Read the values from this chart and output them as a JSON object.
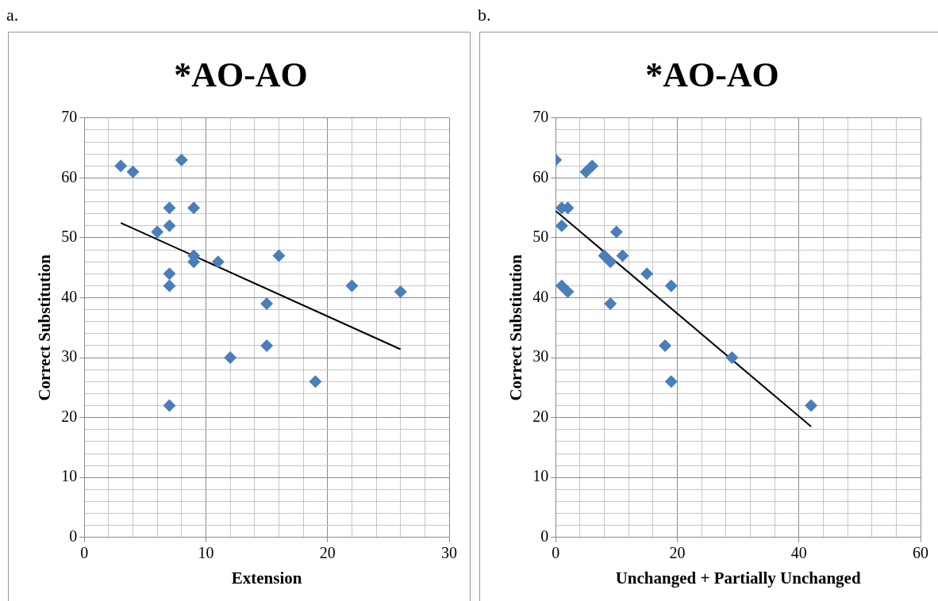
{
  "chart_data": [
    {
      "type": "scatter",
      "title": "*AO-AO",
      "xlabel": "Extension",
      "ylabel": "Correct Substitution",
      "annotations": [
        "a."
      ],
      "xlim": [
        0,
        30
      ],
      "xticks": [
        0,
        {
          "value": 2,
          "label": null
        },
        {
          "value": 4,
          "label": null
        },
        {
          "value": 6,
          "label": null
        },
        {
          "value": 8,
          "label": null
        },
        10,
        {
          "value": 12,
          "label": null
        },
        {
          "value": 14,
          "label": null
        },
        {
          "value": 16,
          "label": null
        },
        {
          "value": 18,
          "label": null
        },
        20,
        {
          "value": 22,
          "label": null
        },
        {
          "value": 24,
          "label": null
        },
        {
          "value": 26,
          "label": null
        },
        {
          "value": 28,
          "label": null
        },
        30
      ],
      "ylim": [
        0,
        70
      ],
      "yticks": [
        0,
        {
          "value": 2,
          "label": null
        },
        {
          "value": 4,
          "label": null
        },
        {
          "value": 6,
          "label": null
        },
        {
          "value": 8,
          "label": null
        },
        10,
        {
          "value": 12,
          "label": null
        },
        {
          "value": 14,
          "label": null
        },
        {
          "value": 16,
          "label": null
        },
        {
          "value": 18,
          "label": null
        },
        20,
        {
          "value": 22,
          "label": null
        },
        {
          "value": 24,
          "label": null
        },
        {
          "value": 26,
          "label": null
        },
        {
          "value": 28,
          "label": null
        },
        30,
        {
          "value": 32,
          "label": null
        },
        {
          "value": 34,
          "label": null
        },
        {
          "value": 36,
          "label": null
        },
        {
          "value": 38,
          "label": null
        },
        40,
        {
          "value": 42,
          "label": null
        },
        {
          "value": 44,
          "label": null
        },
        {
          "value": 46,
          "label": null
        },
        {
          "value": 48,
          "label": null
        },
        50,
        {
          "value": 52,
          "label": null
        },
        {
          "value": 54,
          "label": null
        },
        {
          "value": 56,
          "label": null
        },
        {
          "value": 58,
          "label": null
        },
        60,
        {
          "value": 62,
          "label": null
        },
        {
          "value": 64,
          "label": null
        },
        {
          "value": 66,
          "label": null
        },
        {
          "value": 68,
          "label": null
        },
        70
      ],
      "grid": true,
      "series": [
        {
          "type": "scatter",
          "color": "#4a7ebb",
          "marker": "diamond",
          "x": [
            3,
            4,
            8,
            7,
            9,
            7,
            6,
            9,
            9,
            11,
            7,
            7,
            16,
            15,
            22,
            26,
            15,
            12,
            19,
            7
          ],
          "values": [
            62,
            61,
            63,
            55,
            55,
            52,
            51,
            47,
            46,
            46,
            44,
            42,
            47,
            39,
            42,
            41,
            32,
            30,
            26,
            22
          ]
        },
        {
          "type": "line",
          "color": "#000000",
          "marker": "none",
          "x": [
            3,
            26
          ],
          "values": [
            52.5,
            31.4
          ]
        }
      ]
    },
    {
      "type": "scatter",
      "title": "*AO-AO",
      "xlabel": "Unchanged + Partially Unchanged",
      "ylabel": "Correct Substitution",
      "annotations": [
        "b."
      ],
      "xlim": [
        0,
        60
      ],
      "xticks": [
        0,
        {
          "value": 4,
          "label": null
        },
        {
          "value": 8,
          "label": null
        },
        {
          "value": 12,
          "label": null
        },
        {
          "value": 16,
          "label": null
        },
        20,
        {
          "value": 24,
          "label": null
        },
        {
          "value": 28,
          "label": null
        },
        {
          "value": 32,
          "label": null
        },
        {
          "value": 36,
          "label": null
        },
        40,
        {
          "value": 44,
          "label": null
        },
        {
          "value": 48,
          "label": null
        },
        {
          "value": 52,
          "label": null
        },
        {
          "value": 56,
          "label": null
        },
        60
      ],
      "ylim": [
        0,
        70
      ],
      "yticks": [
        0,
        {
          "value": 2,
          "label": null
        },
        {
          "value": 4,
          "label": null
        },
        {
          "value": 6,
          "label": null
        },
        {
          "value": 8,
          "label": null
        },
        10,
        {
          "value": 12,
          "label": null
        },
        {
          "value": 14,
          "label": null
        },
        {
          "value": 16,
          "label": null
        },
        {
          "value": 18,
          "label": null
        },
        20,
        {
          "value": 22,
          "label": null
        },
        {
          "value": 24,
          "label": null
        },
        {
          "value": 26,
          "label": null
        },
        {
          "value": 28,
          "label": null
        },
        30,
        {
          "value": 32,
          "label": null
        },
        {
          "value": 34,
          "label": null
        },
        {
          "value": 36,
          "label": null
        },
        {
          "value": 38,
          "label": null
        },
        40,
        {
          "value": 42,
          "label": null
        },
        {
          "value": 44,
          "label": null
        },
        {
          "value": 46,
          "label": null
        },
        {
          "value": 48,
          "label": null
        },
        50,
        {
          "value": 52,
          "label": null
        },
        {
          "value": 54,
          "label": null
        },
        {
          "value": 56,
          "label": null
        },
        {
          "value": 58,
          "label": null
        },
        60,
        {
          "value": 62,
          "label": null
        },
        {
          "value": 64,
          "label": null
        },
        {
          "value": 66,
          "label": null
        },
        {
          "value": 68,
          "label": null
        },
        70
      ],
      "grid": true,
      "series": [
        {
          "type": "scatter",
          "color": "#4a7ebb",
          "marker": "diamond",
          "x": [
            0,
            5,
            6,
            1,
            2,
            1,
            10,
            8,
            9,
            11,
            15,
            19,
            1,
            2,
            9,
            18,
            29,
            19,
            42
          ],
          "values": [
            63,
            61,
            62,
            55,
            55,
            52,
            51,
            47,
            46,
            47,
            44,
            42,
            42,
            41,
            39,
            32,
            30,
            26,
            22
          ]
        },
        {
          "type": "line",
          "color": "#000000",
          "marker": "none",
          "x": [
            0,
            42
          ],
          "values": [
            54.5,
            18.5
          ]
        }
      ]
    }
  ]
}
